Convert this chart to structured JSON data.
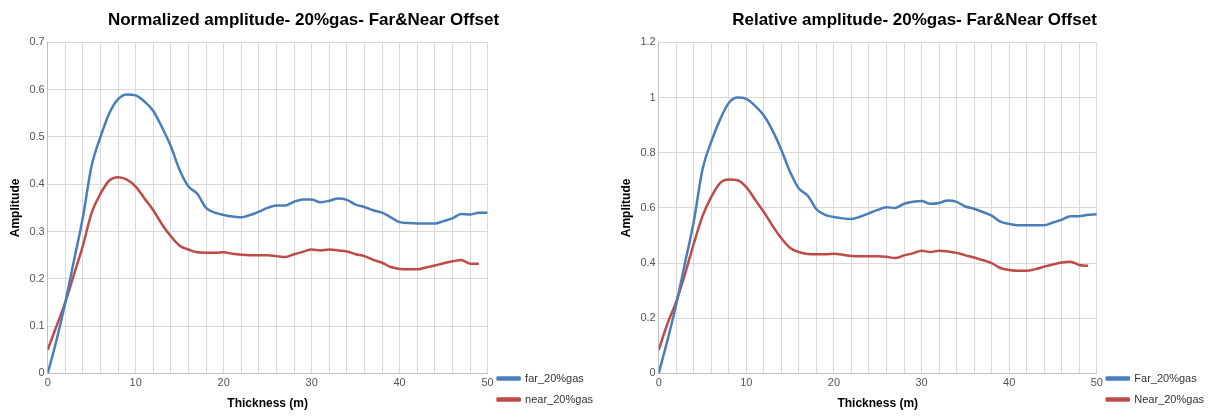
{
  "chart_data": [
    {
      "type": "line",
      "title": "Normalized amplitude- 20%gas- Far&Near Offset",
      "xlabel": "Thickness (m)",
      "ylabel": "Amplitude",
      "x": [
        0,
        1,
        2,
        3,
        4,
        5,
        6,
        7,
        8,
        9,
        10,
        11,
        12,
        13,
        14,
        15,
        16,
        17,
        18,
        19,
        20,
        21,
        22,
        23,
        24,
        25,
        26,
        27,
        28,
        29,
        30,
        31,
        32,
        33,
        34,
        35,
        36,
        37,
        38,
        39,
        40,
        41,
        42,
        43,
        44,
        45,
        46,
        47,
        48,
        49,
        50
      ],
      "series": [
        {
          "name": "far_20%gas",
          "color": "#4a7ebb",
          "values": [
            0,
            0.07,
            0.15,
            0.24,
            0.33,
            0.44,
            0.5,
            0.55,
            0.58,
            0.59,
            0.588,
            0.575,
            0.555,
            0.52,
            0.48,
            0.43,
            0.395,
            0.38,
            0.35,
            0.34,
            0.335,
            0.332,
            0.33,
            0.335,
            0.342,
            0.35,
            0.355,
            0.355,
            0.363,
            0.368,
            0.368,
            0.362,
            0.365,
            0.37,
            0.367,
            0.357,
            0.352,
            0.345,
            0.34,
            0.33,
            0.32,
            0.318,
            0.317,
            0.317,
            0.317,
            0.322,
            0.328,
            0.337,
            0.336,
            0.34,
            0.34
          ]
        },
        {
          "name": "near_20%gas",
          "color": "#be4b48",
          "values": [
            0.05,
            0.1,
            0.15,
            0.21,
            0.27,
            0.34,
            0.38,
            0.408,
            0.415,
            0.41,
            0.395,
            0.37,
            0.345,
            0.315,
            0.29,
            0.27,
            0.262,
            0.256,
            0.255,
            0.255,
            0.256,
            0.253,
            0.251,
            0.25,
            0.25,
            0.25,
            0.248,
            0.246,
            0.252,
            0.257,
            0.262,
            0.26,
            0.262,
            0.26,
            0.258,
            0.252,
            0.248,
            0.24,
            0.234,
            0.225,
            0.221,
            0.22,
            0.22,
            0.224,
            0.228,
            0.233,
            0.237,
            0.24,
            0.232,
            0.232,
            null
          ]
        }
      ],
      "xlim": [
        0,
        50
      ],
      "xticks": [
        0,
        {
          "value": 2,
          "label": null
        },
        {
          "value": 4,
          "label": null
        },
        {
          "value": 6,
          "label": null
        },
        {
          "value": 8,
          "label": null
        },
        10,
        {
          "value": 12,
          "label": null
        },
        {
          "value": 14,
          "label": null
        },
        {
          "value": 16,
          "label": null
        },
        {
          "value": 18,
          "label": null
        },
        20,
        {
          "value": 22,
          "label": null
        },
        {
          "value": 24,
          "label": null
        },
        {
          "value": 26,
          "label": null
        },
        {
          "value": 28,
          "label": null
        },
        30,
        {
          "value": 32,
          "label": null
        },
        {
          "value": 34,
          "label": null
        },
        {
          "value": 36,
          "label": null
        },
        {
          "value": 38,
          "label": null
        },
        40,
        {
          "value": 42,
          "label": null
        },
        {
          "value": 44,
          "label": null
        },
        {
          "value": 46,
          "label": null
        },
        {
          "value": 48,
          "label": null
        },
        50
      ],
      "ylim": [
        0,
        0.7
      ],
      "yticks": [
        0,
        0.1,
        0.2,
        0.3,
        0.4,
        0.5,
        0.6,
        0.7
      ],
      "grid": true,
      "legend": "bottom right",
      "marker": "none",
      "line_style": "solid"
    },
    {
      "type": "line",
      "title": "Relative amplitude- 20%gas- Far&Near Offset",
      "xlabel": "Thickness (m)",
      "ylabel": "Amplitude",
      "x": [
        0,
        1,
        2,
        3,
        4,
        5,
        6,
        7,
        8,
        9,
        10,
        11,
        12,
        13,
        14,
        15,
        16,
        17,
        18,
        19,
        20,
        21,
        22,
        23,
        24,
        25,
        26,
        27,
        28,
        29,
        30,
        31,
        32,
        33,
        34,
        35,
        36,
        37,
        38,
        39,
        40,
        41,
        42,
        43,
        44,
        45,
        46,
        47,
        48,
        49,
        50
      ],
      "series": [
        {
          "name": "Far_20%gas",
          "color": "#4a7ebb",
          "values": [
            0,
            0.12,
            0.25,
            0.4,
            0.55,
            0.74,
            0.84,
            0.92,
            0.98,
            1.0,
            0.995,
            0.97,
            0.935,
            0.88,
            0.81,
            0.73,
            0.67,
            0.645,
            0.595,
            0.575,
            0.567,
            0.562,
            0.56,
            0.568,
            0.58,
            0.593,
            0.602,
            0.6,
            0.615,
            0.622,
            0.625,
            0.615,
            0.618,
            0.627,
            0.622,
            0.605,
            0.597,
            0.585,
            0.572,
            0.55,
            0.542,
            0.537,
            0.537,
            0.537,
            0.537,
            0.547,
            0.557,
            0.57,
            0.57,
            0.575,
            0.577
          ]
        },
        {
          "name": "Near_20%gas",
          "color": "#be4b48",
          "values": [
            0.085,
            0.18,
            0.26,
            0.36,
            0.47,
            0.57,
            0.64,
            0.69,
            0.703,
            0.7,
            0.675,
            0.63,
            0.585,
            0.535,
            0.49,
            0.455,
            0.44,
            0.433,
            0.432,
            0.432,
            0.434,
            0.43,
            0.426,
            0.425,
            0.425,
            0.425,
            0.423,
            0.418,
            0.428,
            0.435,
            0.445,
            0.44,
            0.445,
            0.442,
            0.437,
            0.428,
            0.42,
            0.41,
            0.4,
            0.382,
            0.375,
            0.372,
            0.372,
            0.378,
            0.387,
            0.395,
            0.402,
            0.405,
            0.393,
            0.39,
            null
          ]
        }
      ],
      "xlim": [
        0,
        50
      ],
      "xticks": [
        0,
        {
          "value": 2,
          "label": null
        },
        {
          "value": 4,
          "label": null
        },
        {
          "value": 6,
          "label": null
        },
        {
          "value": 8,
          "label": null
        },
        10,
        {
          "value": 12,
          "label": null
        },
        {
          "value": 14,
          "label": null
        },
        {
          "value": 16,
          "label": null
        },
        {
          "value": 18,
          "label": null
        },
        20,
        {
          "value": 22,
          "label": null
        },
        {
          "value": 24,
          "label": null
        },
        {
          "value": 26,
          "label": null
        },
        {
          "value": 28,
          "label": null
        },
        30,
        {
          "value": 32,
          "label": null
        },
        {
          "value": 34,
          "label": null
        },
        {
          "value": 36,
          "label": null
        },
        {
          "value": 38,
          "label": null
        },
        40,
        {
          "value": 42,
          "label": null
        },
        {
          "value": 44,
          "label": null
        },
        {
          "value": 46,
          "label": null
        },
        {
          "value": 48,
          "label": null
        },
        50
      ],
      "ylim": [
        0,
        1.2
      ],
      "yticks": [
        0,
        0.2,
        0.4,
        0.6,
        0.8,
        1,
        1.2
      ],
      "grid": true,
      "legend": "bottom right",
      "marker": "none",
      "line_style": "solid"
    }
  ]
}
